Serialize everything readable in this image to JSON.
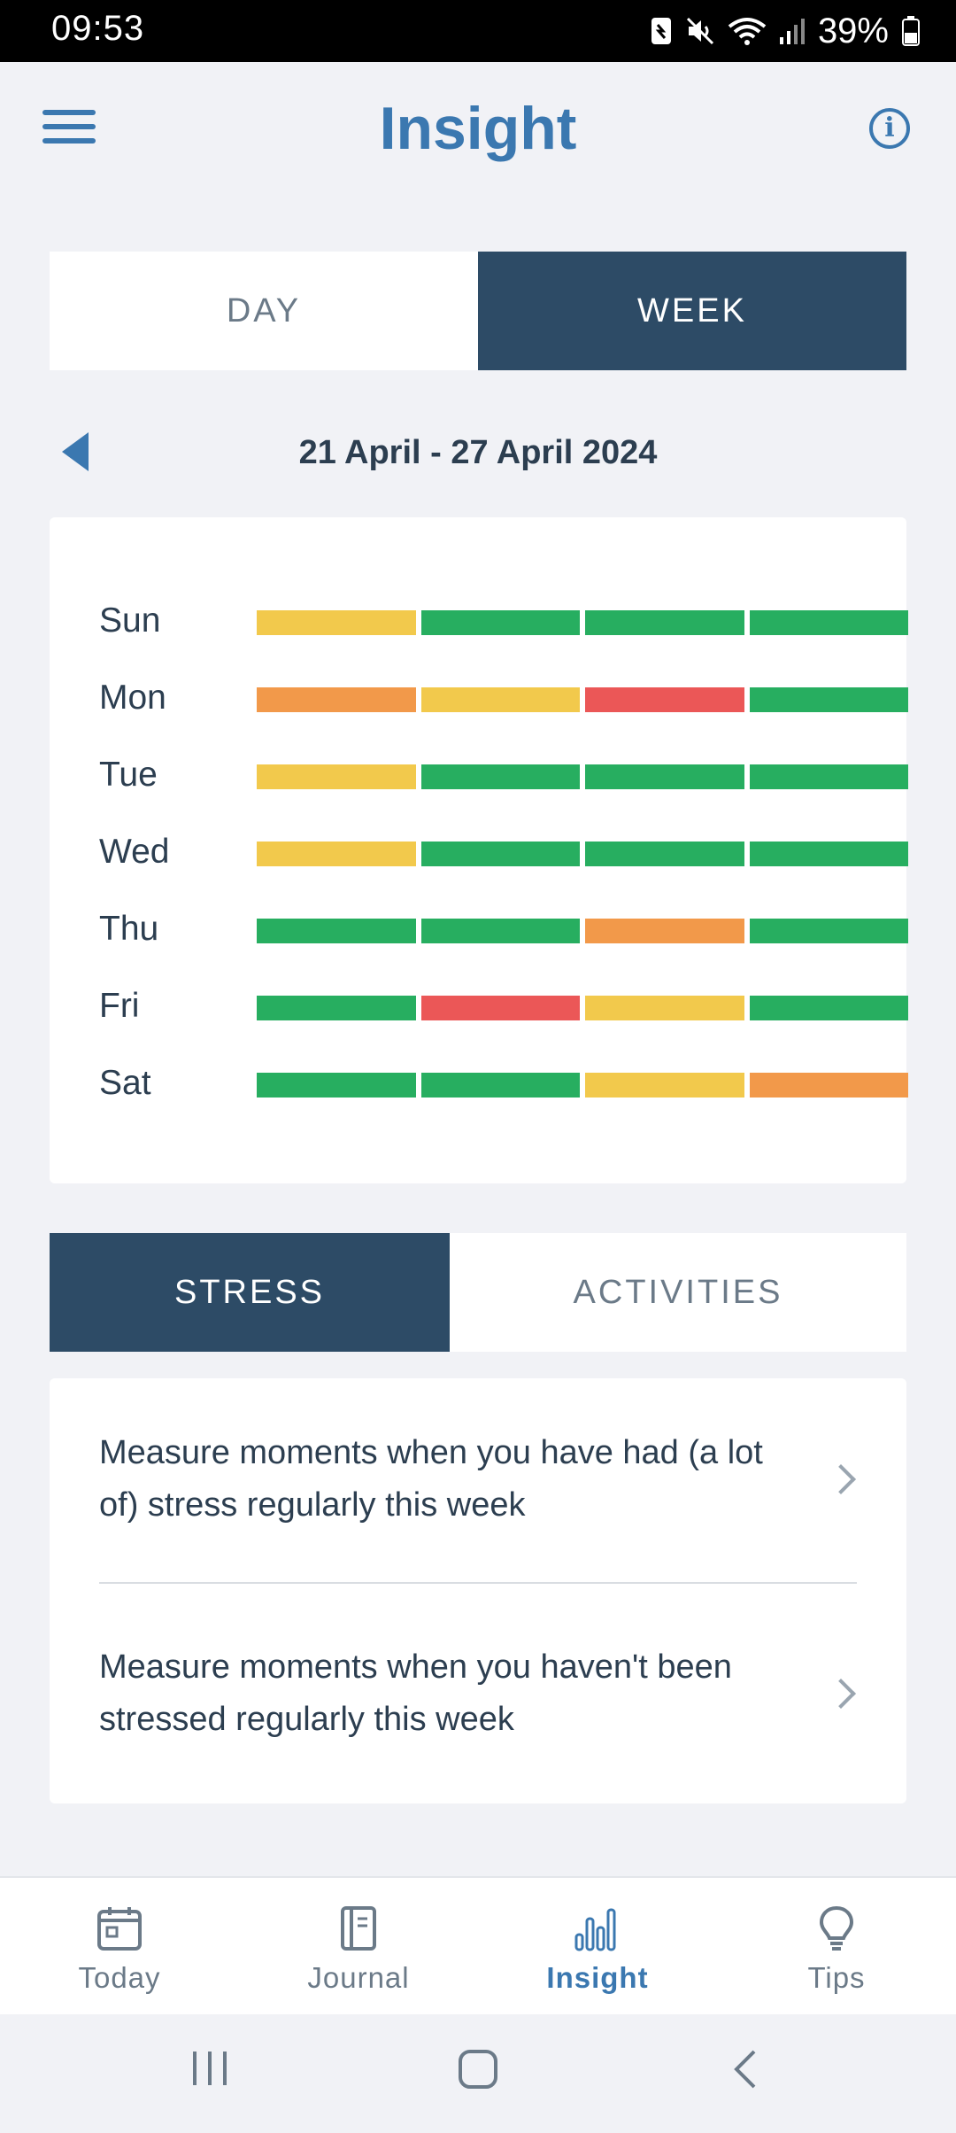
{
  "status_bar": {
    "time": "09:53",
    "battery": "39%"
  },
  "header": {
    "title": "Insight"
  },
  "period_toggle": {
    "day_label": "DAY",
    "week_label": "WEEK",
    "selected": "WEEK"
  },
  "date_nav": {
    "range": "21 April - 27 April 2024"
  },
  "week_grid": {
    "colors": {
      "green": "#27ae60",
      "yellow": "#f2c94c",
      "orange": "#f2994a",
      "red": "#eb5757"
    },
    "rows": [
      {
        "day": "Sun",
        "levels": [
          "yellow",
          "green",
          "green",
          "green"
        ]
      },
      {
        "day": "Mon",
        "levels": [
          "orange",
          "yellow",
          "red",
          "green"
        ]
      },
      {
        "day": "Tue",
        "levels": [
          "yellow",
          "green",
          "green",
          "green"
        ]
      },
      {
        "day": "Wed",
        "levels": [
          "yellow",
          "green",
          "green",
          "green"
        ]
      },
      {
        "day": "Thu",
        "levels": [
          "green",
          "green",
          "orange",
          "green"
        ]
      },
      {
        "day": "Fri",
        "levels": [
          "green",
          "red",
          "yellow",
          "green"
        ]
      },
      {
        "day": "Sat",
        "levels": [
          "green",
          "green",
          "yellow",
          "orange"
        ]
      }
    ]
  },
  "metric_toggle": {
    "stress_label": "STRESS",
    "activities_label": "ACTIVITIES",
    "selected": "STRESS"
  },
  "stress_list": {
    "items": [
      {
        "text": "Measure moments when you have had (a lot of) stress regularly this week"
      },
      {
        "text": "Measure moments when you haven't been stressed regularly this week"
      }
    ]
  },
  "bottom_nav": {
    "items": [
      {
        "label": "Today",
        "icon": "calendar-icon"
      },
      {
        "label": "Journal",
        "icon": "notebook-icon"
      },
      {
        "label": "Insight",
        "icon": "bar-chart-icon",
        "active": true
      },
      {
        "label": "Tips",
        "icon": "lightbulb-icon"
      }
    ]
  },
  "accent_color": "#3b78b0",
  "toggle_active_color": "#2d4b66"
}
